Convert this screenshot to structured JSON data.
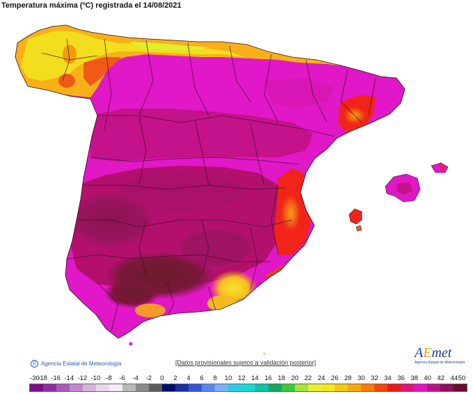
{
  "header": {
    "title": "Temperatura máxima (ºC) registrada el 14/08/2021"
  },
  "footer": {
    "credit": "Agencia Estatal de Meteorología",
    "disclaimer": "[Datos provisionales sujetos a validación posterior]"
  },
  "logo": {
    "word_a": "A",
    "word_e": "E",
    "word_rest": "met",
    "subtitle": "Agencia Estatal de Meteorología"
  },
  "legend": {
    "labels": [
      "-30",
      "-18",
      "-16",
      "-14",
      "-12",
      "-10",
      "-8",
      "-6",
      "-4",
      "-2",
      "0",
      "2",
      "4",
      "6",
      "8",
      "10",
      "12",
      "14",
      "16",
      "18",
      "20",
      "22",
      "24",
      "26",
      "28",
      "30",
      "32",
      "34",
      "36",
      "38",
      "40",
      "42",
      "44",
      "50"
    ],
    "colors": [
      "#7d0f8a",
      "#8e2fa0",
      "#a85ab8",
      "#c08ac8",
      "#d6b3dc",
      "#ead6ee",
      "#f5eaf6",
      "#b9b9b9",
      "#8a8a8a",
      "#5c5c5c",
      "#000f6e",
      "#1a2fa8",
      "#3355d6",
      "#5b86ee",
      "#7fb0f5",
      "#2ec8ec",
      "#18d8d0",
      "#12c0a4",
      "#12a860",
      "#3cc83c",
      "#a6e23a",
      "#e8f030",
      "#f6e818",
      "#f8c810",
      "#f8a808",
      "#f87a08",
      "#f04808",
      "#e81818",
      "#e0147a",
      "#e016c0",
      "#b8128a",
      "#8e0e5a",
      "#6a0a2e"
    ]
  },
  "colors": {
    "sea": "#ffffff",
    "hot_dark": "#7a1838",
    "hot_violet": "#b3106e",
    "magenta": "#e018c8",
    "red": "#f02418",
    "orange": "#f89a10",
    "yellow": "#f2de1e",
    "greenish": "#dcf030",
    "boundary": "#3a0f24"
  }
}
